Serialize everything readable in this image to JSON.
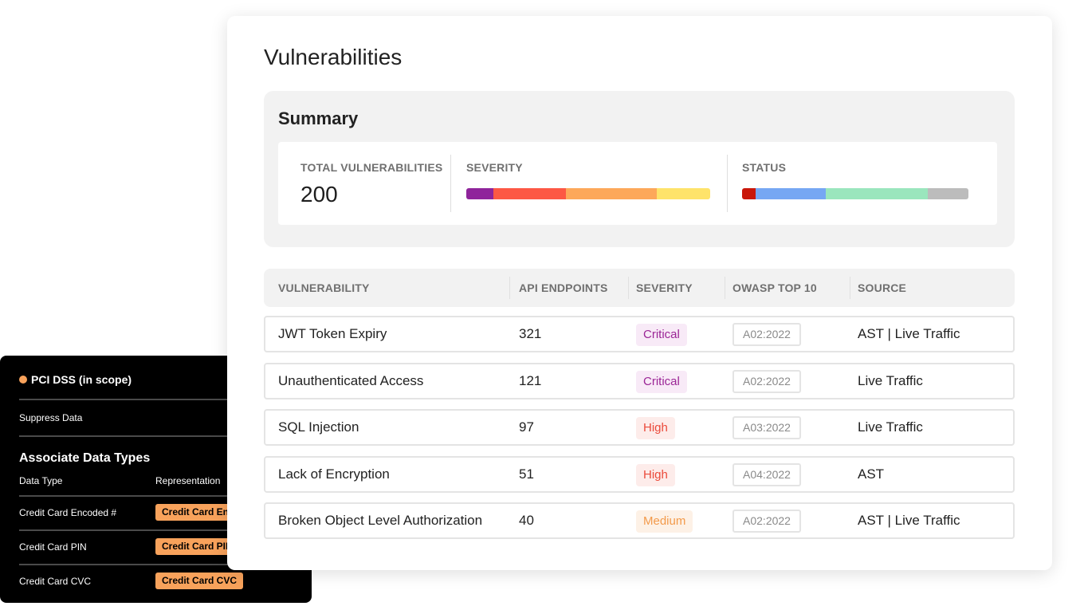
{
  "main": {
    "title": "Vulnerabilities",
    "summary": {
      "title": "Summary",
      "total_label": "TOTAL VULNERABILITIES",
      "total_value": "200",
      "severity_label": "SEVERITY",
      "status_label": "STATUS",
      "severity_segments": [
        {
          "color": "#8f249b",
          "fraction": 0.11
        },
        {
          "color": "#fd5844",
          "fraction": 0.3
        },
        {
          "color": "#fda85a",
          "fraction": 0.37
        },
        {
          "color": "#fee36a",
          "fraction": 0.22
        }
      ],
      "status_segments": [
        {
          "color": "#c9170a",
          "fraction": 0.06
        },
        {
          "color": "#76a7f3",
          "fraction": 0.31
        },
        {
          "color": "#9ae6bd",
          "fraction": 0.45
        },
        {
          "color": "#bcbcbc",
          "fraction": 0.18
        }
      ]
    },
    "table": {
      "headers": {
        "vulnerability": "VULNERABILITY",
        "endpoints": "API ENDPOINTS",
        "severity": "SEVERITY",
        "owasp": "OWASP TOP 10",
        "source": "SOURCE"
      },
      "rows": [
        {
          "name": "JWT Token Expiry",
          "endpoints": "321",
          "severity": "Critical",
          "severity_level": "critical",
          "owasp": "A02:2022",
          "source": "AST | Live Traffic"
        },
        {
          "name": "Unauthenticated Access",
          "endpoints": "121",
          "severity": "Critical",
          "severity_level": "critical",
          "owasp": "A02:2022",
          "source": "Live Traffic"
        },
        {
          "name": "SQL Injection",
          "endpoints": "97",
          "severity": "High",
          "severity_level": "high",
          "owasp": "A03:2022",
          "source": "Live Traffic"
        },
        {
          "name": "Lack of Encryption",
          "endpoints": "51",
          "severity": "High",
          "severity_level": "high",
          "owasp": "A04:2022",
          "source": "AST"
        },
        {
          "name": "Broken Object Level Authorization",
          "endpoints": "40",
          "severity": "Medium",
          "severity_level": "medium",
          "owasp": "A02:2022",
          "source": "AST | Live Traffic"
        }
      ]
    }
  },
  "pci": {
    "title": "PCI DSS (in scope)",
    "suppress": "Suppress Data",
    "assoc_title": "Associate Data Types",
    "col_data_type": "Data Type",
    "col_representation": "Representation",
    "rows": [
      {
        "type": "Credit Card Encoded #",
        "representation": "Credit Card Encoded #"
      },
      {
        "type": "Credit Card PIN",
        "representation": "Credit Card PIN"
      },
      {
        "type": "Credit Card CVC",
        "representation": "Credit Card CVC"
      }
    ],
    "accent_color": "#f8a25b"
  }
}
